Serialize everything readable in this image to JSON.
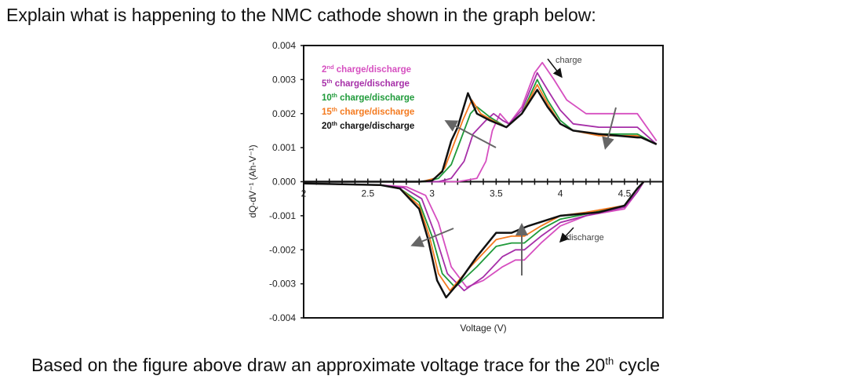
{
  "question_top": "Explain what is happening to the NMC cathode shown in the graph below:",
  "question_bottom": {
    "before": "Based on the figure above draw an approximate voltage trace for the 20",
    "sup": "th",
    "after": " cycle"
  },
  "chart_data": {
    "type": "line",
    "title": "",
    "xlabel": "Voltage (V)",
    "ylabel": "dQ-dV⁻¹ (Ah-V⁻¹)",
    "xlim": [
      2,
      4.8
    ],
    "ylim": [
      -0.004,
      0.004
    ],
    "xticks": [
      "2",
      "2.5",
      "3",
      "3.5",
      "4",
      "4.5"
    ],
    "yticks": [
      "0.004",
      "0.003",
      "0.002",
      "0.001",
      "0.000",
      "-0.001",
      "-0.002",
      "-0.003",
      "-0.004"
    ],
    "grid": false,
    "legend_position": "top-left",
    "annotations": {
      "charge": "charge",
      "discharge": "discharge"
    },
    "series": [
      {
        "name": "2nd charge/discharge",
        "ord": "2",
        "sup": "nd",
        "label": " charge/discharge",
        "color": "#d64fc0",
        "charge": {
          "x": [
            2.0,
            3.2,
            3.35,
            3.42,
            3.47,
            3.53,
            3.6,
            3.7,
            3.8,
            3.86,
            3.95,
            4.05,
            4.2,
            4.4,
            4.6,
            4.75
          ],
          "y": [
            0,
            0,
            0.0001,
            0.0006,
            0.0015,
            0.002,
            0.0017,
            0.0022,
            0.0032,
            0.0035,
            0.003,
            0.0024,
            0.002,
            0.002,
            0.002,
            0.0012
          ]
        },
        "discharge": {
          "x": [
            2.0,
            2.6,
            2.8,
            2.95,
            3.05,
            3.15,
            3.27,
            3.4,
            3.55,
            3.65,
            3.72,
            3.85,
            4.0,
            4.2,
            4.5,
            4.6,
            4.65
          ],
          "y": [
            -5e-05,
            -0.0001,
            -0.00015,
            -0.0004,
            -0.0012,
            -0.0025,
            -0.0031,
            -0.0029,
            -0.0025,
            -0.0023,
            -0.0023,
            -0.0018,
            -0.0013,
            -0.001,
            -0.0008,
            -0.0003,
            0
          ]
        }
      },
      {
        "name": "5th charge/discharge",
        "ord": "5",
        "sup": "th",
        "label": " charge/discharge",
        "color": "#a62fa8",
        "charge": {
          "x": [
            2.0,
            3.05,
            3.15,
            3.25,
            3.32,
            3.42,
            3.48,
            3.55,
            3.6,
            3.7,
            3.82,
            3.9,
            4.0,
            4.1,
            4.3,
            4.6,
            4.75
          ],
          "y": [
            0,
            0,
            0.0001,
            0.0006,
            0.0014,
            0.0018,
            0.002,
            0.0018,
            0.0017,
            0.0021,
            0.0032,
            0.0027,
            0.0021,
            0.0017,
            0.0016,
            0.0016,
            0.0011
          ]
        },
        "discharge": {
          "x": [
            2.0,
            2.6,
            2.78,
            2.92,
            3.02,
            3.12,
            3.25,
            3.4,
            3.55,
            3.65,
            3.72,
            3.85,
            4.0,
            4.2,
            4.5,
            4.6,
            4.65
          ],
          "y": [
            -5e-05,
            -0.0001,
            -0.00018,
            -0.0005,
            -0.0015,
            -0.0027,
            -0.0032,
            -0.0028,
            -0.0022,
            -0.002,
            -0.002,
            -0.0016,
            -0.0012,
            -0.001,
            -0.00075,
            -0.0003,
            0
          ]
        }
      },
      {
        "name": "10th charge/discharge",
        "ord": "10",
        "sup": "th",
        "label": " charge/discharge",
        "color": "#1f9a3a",
        "charge": {
          "x": [
            2.0,
            2.95,
            3.05,
            3.15,
            3.22,
            3.3,
            3.35,
            3.45,
            3.58,
            3.7,
            3.82,
            3.9,
            4.0,
            4.1,
            4.3,
            4.6,
            4.75
          ],
          "y": [
            0,
            0,
            0.0001,
            0.0005,
            0.0012,
            0.002,
            0.0022,
            0.0019,
            0.0016,
            0.002,
            0.003,
            0.0024,
            0.0018,
            0.0015,
            0.0014,
            0.0014,
            0.0011
          ]
        },
        "discharge": {
          "x": [
            2.0,
            2.6,
            2.75,
            2.9,
            3.0,
            3.08,
            3.18,
            3.35,
            3.5,
            3.62,
            3.72,
            3.85,
            4.0,
            4.2,
            4.5,
            4.6,
            4.65
          ],
          "y": [
            -5e-05,
            -0.0001,
            -0.0002,
            -0.0006,
            -0.0016,
            -0.0027,
            -0.0031,
            -0.0025,
            -0.0019,
            -0.0018,
            -0.0018,
            -0.0014,
            -0.0011,
            -0.00095,
            -0.0007,
            -0.0002,
            0
          ]
        }
      },
      {
        "name": "15th charge/discharge",
        "ord": "15",
        "sup": "th",
        "label": " charge/discharge",
        "color": "#f47a1f",
        "charge": {
          "x": [
            2.0,
            2.92,
            3.02,
            3.1,
            3.18,
            3.24,
            3.31,
            3.38,
            3.47,
            3.58,
            3.7,
            3.82,
            3.9,
            4.0,
            4.1,
            4.3,
            4.6,
            4.75
          ],
          "y": [
            0,
            0,
            0.0001,
            0.0004,
            0.0012,
            0.0018,
            0.0024,
            0.002,
            0.0018,
            0.0016,
            0.002,
            0.00285,
            0.0023,
            0.0017,
            0.0015,
            0.00135,
            0.00135,
            0.0011
          ]
        },
        "discharge": {
          "x": [
            2.0,
            2.6,
            2.75,
            2.9,
            2.98,
            3.05,
            3.14,
            3.3,
            3.5,
            3.62,
            3.72,
            3.85,
            4.0,
            4.2,
            4.5,
            4.6,
            4.65
          ],
          "y": [
            -5e-05,
            -0.0001,
            -0.0002,
            -0.0007,
            -0.0016,
            -0.0027,
            -0.0032,
            -0.0025,
            -0.0017,
            -0.0016,
            -0.0016,
            -0.0013,
            -0.001,
            -0.0009,
            -0.0007,
            -0.0002,
            0
          ]
        }
      },
      {
        "name": "20th charge/discharge",
        "ord": "20",
        "sup": "th",
        "label": " charge/discharge",
        "color": "#111111",
        "charge": {
          "x": [
            2.0,
            2.9,
            3.0,
            3.08,
            3.15,
            3.2,
            3.28,
            3.35,
            3.45,
            3.58,
            3.7,
            3.82,
            3.9,
            4.0,
            4.1,
            4.3,
            4.6,
            4.63,
            4.75
          ],
          "y": [
            0,
            0,
            3e-05,
            0.0003,
            0.0012,
            0.0016,
            0.0026,
            0.002,
            0.0018,
            0.0016,
            0.002,
            0.0027,
            0.0022,
            0.0017,
            0.0015,
            0.0014,
            0.0013,
            0.0013,
            0.0011
          ]
        },
        "discharge": {
          "x": [
            2.0,
            2.6,
            2.75,
            2.9,
            2.97,
            3.04,
            3.11,
            3.2,
            3.35,
            3.5,
            3.62,
            3.75,
            4.0,
            4.3,
            4.5,
            4.6,
            4.65
          ],
          "y": [
            -5e-05,
            -0.0001,
            -0.0002,
            -0.0008,
            -0.0017,
            -0.0029,
            -0.0034,
            -0.003,
            -0.0022,
            -0.0015,
            -0.0015,
            -0.0013,
            -0.001,
            -0.0009,
            -0.0007,
            -0.0002,
            0
          ]
        }
      }
    ]
  }
}
